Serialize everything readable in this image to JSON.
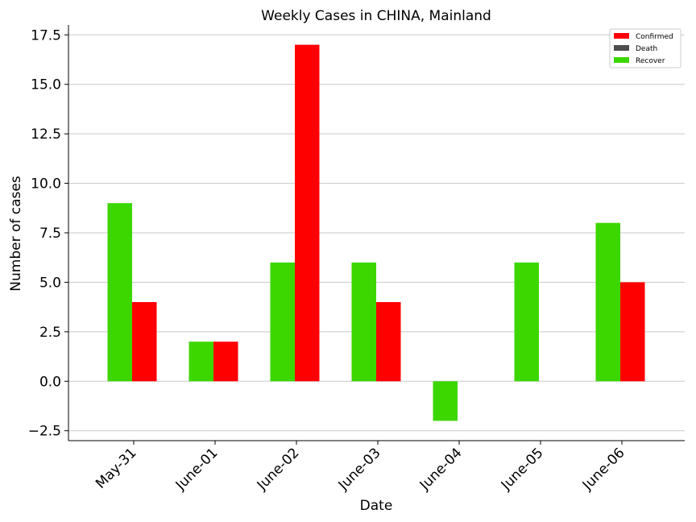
{
  "chart_data": {
    "type": "bar",
    "title": "Weekly Cases in CHINA, Mainland",
    "xlabel": "Date",
    "ylabel": "Number of cases",
    "categories": [
      "May-31",
      "June-01",
      "June-02",
      "June-03",
      "June-04",
      "June-05",
      "June-06"
    ],
    "ylim": [
      -3,
      18
    ],
    "yticks": [
      "−2.5",
      "0.0",
      "2.5",
      "5.0",
      "7.5",
      "10.0",
      "12.5",
      "15.0",
      "17.5"
    ],
    "ytick_values": [
      -2.5,
      0,
      2.5,
      5,
      7.5,
      10,
      12.5,
      15,
      17.5
    ],
    "grid": "horizontal",
    "legend_position": "top-right",
    "series": [
      {
        "name": "Confirmed",
        "color": "#ff0000",
        "values": [
          4,
          2,
          17,
          4,
          0,
          0,
          5
        ]
      },
      {
        "name": "Death",
        "color": "#4d4d4d",
        "values": [
          0,
          0,
          0,
          0,
          0,
          0,
          0
        ]
      },
      {
        "name": "Recover",
        "color": "#3cd600",
        "values": [
          9,
          2,
          6,
          6,
          -2,
          6,
          8
        ]
      }
    ]
  }
}
